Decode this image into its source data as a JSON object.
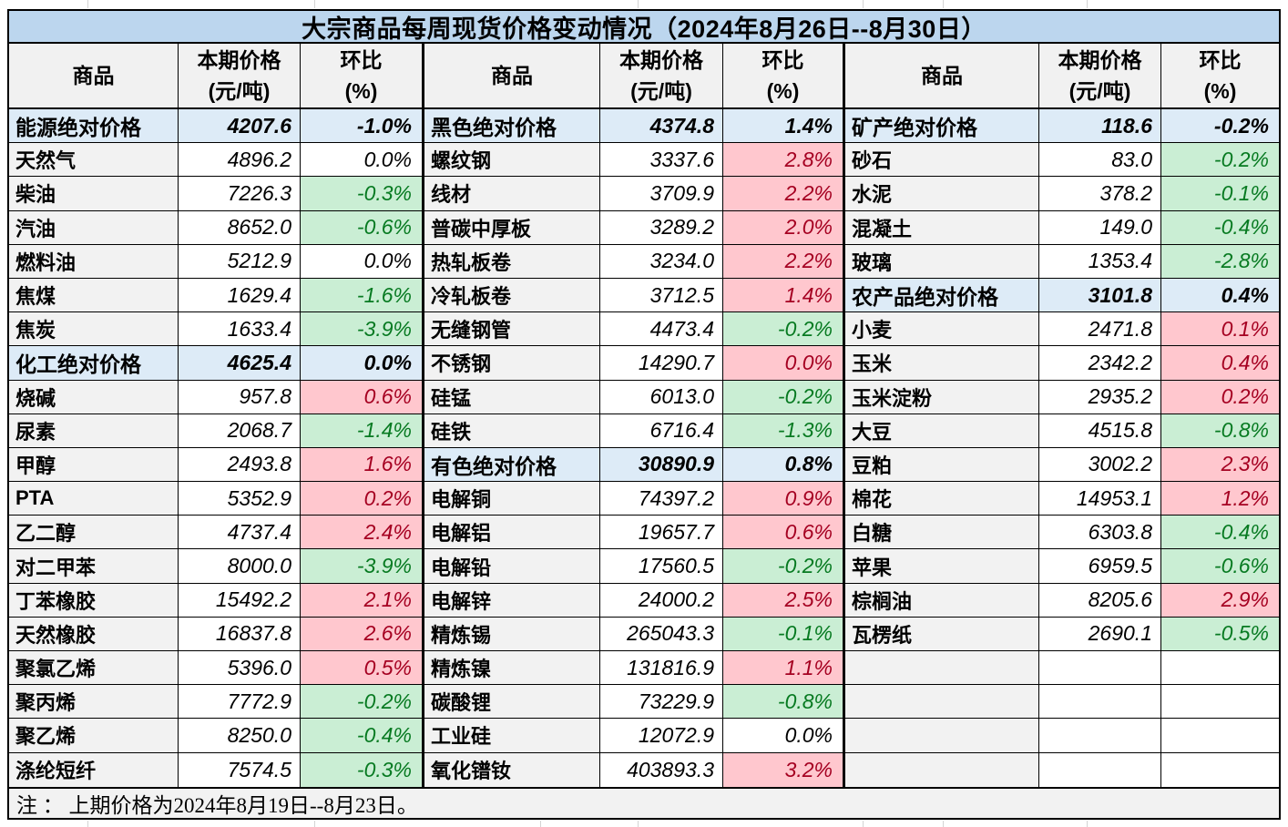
{
  "title": "大宗商品每周现货价格变动情况（2024年8月26日--8月30日）",
  "note": "注 ： 上期价格为2024年8月19日--8月23日。",
  "column_headers": {
    "commodity": "商品",
    "price": "本期价格\n(元/吨)",
    "change": "环比\n(%)"
  },
  "colors": {
    "title_bg": "#BCD6EE",
    "category_row_bg": "#DDEBF7",
    "commodity_col_bg": "#F2F2F2",
    "header_bg": "#F1F1F1",
    "increase_bg": "#FFC7CE",
    "increase_text": "#A50021",
    "decrease_bg": "#CAEED4",
    "decrease_text": "#077A21",
    "border": "#000000"
  },
  "groups": [
    {
      "rows": [
        {
          "type": "category",
          "name": "能源绝对价格",
          "price": "4207.6",
          "change": "-1.0%",
          "change_style": "flat"
        },
        {
          "type": "item",
          "name": "天然气",
          "price": "4896.2",
          "change": "0.0%",
          "change_style": "flat"
        },
        {
          "type": "item",
          "name": "柴油",
          "price": "7226.3",
          "change": "-0.3%",
          "change_style": "down"
        },
        {
          "type": "item",
          "name": "汽油",
          "price": "8652.0",
          "change": "-0.6%",
          "change_style": "down"
        },
        {
          "type": "item",
          "name": "燃料油",
          "price": "5212.9",
          "change": "0.0%",
          "change_style": "flat"
        },
        {
          "type": "item",
          "name": "焦煤",
          "price": "1629.4",
          "change": "-1.6%",
          "change_style": "down"
        },
        {
          "type": "item",
          "name": "焦炭",
          "price": "1633.4",
          "change": "-3.9%",
          "change_style": "down"
        },
        {
          "type": "category",
          "name": "化工绝对价格",
          "price": "4625.4",
          "change": "0.0%",
          "change_style": "flat"
        },
        {
          "type": "item",
          "name": "烧碱",
          "price": "957.8",
          "change": "0.6%",
          "change_style": "up"
        },
        {
          "type": "item",
          "name": "尿素",
          "price": "2068.7",
          "change": "-1.4%",
          "change_style": "down"
        },
        {
          "type": "item",
          "name": "甲醇",
          "price": "2493.8",
          "change": "1.6%",
          "change_style": "up"
        },
        {
          "type": "item",
          "name": "PTA",
          "price": "5352.9",
          "change": "0.2%",
          "change_style": "up"
        },
        {
          "type": "item",
          "name": "乙二醇",
          "price": "4737.4",
          "change": "2.4%",
          "change_style": "up"
        },
        {
          "type": "item",
          "name": "对二甲苯",
          "price": "8000.0",
          "change": "-3.9%",
          "change_style": "down"
        },
        {
          "type": "item",
          "name": "丁苯橡胶",
          "price": "15492.2",
          "change": "2.1%",
          "change_style": "up"
        },
        {
          "type": "item",
          "name": "天然橡胶",
          "price": "16837.8",
          "change": "2.6%",
          "change_style": "up"
        },
        {
          "type": "item",
          "name": "聚氯乙烯",
          "price": "5396.0",
          "change": "0.5%",
          "change_style": "up"
        },
        {
          "type": "item",
          "name": "聚丙烯",
          "price": "7772.9",
          "change": "-0.2%",
          "change_style": "down"
        },
        {
          "type": "item",
          "name": "聚乙烯",
          "price": "8250.0",
          "change": "-0.4%",
          "change_style": "down"
        },
        {
          "type": "item",
          "name": "涤纶短纤",
          "price": "7574.5",
          "change": "-0.3%",
          "change_style": "down"
        }
      ]
    },
    {
      "rows": [
        {
          "type": "category",
          "name": "黑色绝对价格",
          "price": "4374.8",
          "change": "1.4%",
          "change_style": "flat"
        },
        {
          "type": "item",
          "name": "螺纹钢",
          "price": "3337.6",
          "change": "2.8%",
          "change_style": "up"
        },
        {
          "type": "item",
          "name": "线材",
          "price": "3709.9",
          "change": "2.2%",
          "change_style": "up"
        },
        {
          "type": "item",
          "name": "普碳中厚板",
          "price": "3289.2",
          "change": "2.0%",
          "change_style": "up"
        },
        {
          "type": "item",
          "name": "热轧板卷",
          "price": "3234.0",
          "change": "2.2%",
          "change_style": "up"
        },
        {
          "type": "item",
          "name": "冷轧板卷",
          "price": "3712.5",
          "change": "1.4%",
          "change_style": "up"
        },
        {
          "type": "item",
          "name": "无缝钢管",
          "price": "4473.4",
          "change": "-0.2%",
          "change_style": "down"
        },
        {
          "type": "item",
          "name": "不锈钢",
          "price": "14290.7",
          "change": "0.0%",
          "change_style": "up"
        },
        {
          "type": "item",
          "name": "硅锰",
          "price": "6013.0",
          "change": "-0.2%",
          "change_style": "down"
        },
        {
          "type": "item",
          "name": "硅铁",
          "price": "6716.4",
          "change": "-1.3%",
          "change_style": "down"
        },
        {
          "type": "category",
          "name": "有色绝对价格",
          "price": "30890.9",
          "change": "0.8%",
          "change_style": "flat"
        },
        {
          "type": "item",
          "name": "电解铜",
          "price": "74397.2",
          "change": "0.9%",
          "change_style": "up"
        },
        {
          "type": "item",
          "name": "电解铝",
          "price": "19657.7",
          "change": "0.6%",
          "change_style": "up"
        },
        {
          "type": "item",
          "name": "电解铅",
          "price": "17560.5",
          "change": "-0.2%",
          "change_style": "down"
        },
        {
          "type": "item",
          "name": "电解锌",
          "price": "24000.2",
          "change": "2.5%",
          "change_style": "up"
        },
        {
          "type": "item",
          "name": "精炼锡",
          "price": "265043.3",
          "change": "-0.1%",
          "change_style": "down"
        },
        {
          "type": "item",
          "name": "精炼镍",
          "price": "131816.9",
          "change": "1.1%",
          "change_style": "up"
        },
        {
          "type": "item",
          "name": "碳酸锂",
          "price": "73229.9",
          "change": "-0.8%",
          "change_style": "down"
        },
        {
          "type": "item",
          "name": "工业硅",
          "price": "12072.9",
          "change": "0.0%",
          "change_style": "flat"
        },
        {
          "type": "item",
          "name": "氧化镨钕",
          "price": "403893.3",
          "change": "3.2%",
          "change_style": "up"
        }
      ]
    },
    {
      "rows": [
        {
          "type": "category",
          "name": "矿产绝对价格",
          "price": "118.6",
          "change": "-0.2%",
          "change_style": "flat"
        },
        {
          "type": "item",
          "name": "砂石",
          "price": "83.0",
          "change": "-0.2%",
          "change_style": "down"
        },
        {
          "type": "item",
          "name": "水泥",
          "price": "378.2",
          "change": "-0.1%",
          "change_style": "down"
        },
        {
          "type": "item",
          "name": "混凝土",
          "price": "149.0",
          "change": "-0.4%",
          "change_style": "down"
        },
        {
          "type": "item",
          "name": "玻璃",
          "price": "1353.4",
          "change": "-2.8%",
          "change_style": "down"
        },
        {
          "type": "category",
          "name": "农产品绝对价格",
          "price": "3101.8",
          "change": "0.4%",
          "change_style": "flat"
        },
        {
          "type": "item",
          "name": "小麦",
          "price": "2471.8",
          "change": "0.1%",
          "change_style": "up"
        },
        {
          "type": "item",
          "name": "玉米",
          "price": "2342.2",
          "change": "0.4%",
          "change_style": "up"
        },
        {
          "type": "item",
          "name": "玉米淀粉",
          "price": "2935.2",
          "change": "0.2%",
          "change_style": "up"
        },
        {
          "type": "item",
          "name": "大豆",
          "price": "4515.8",
          "change": "-0.8%",
          "change_style": "down"
        },
        {
          "type": "item",
          "name": "豆粕",
          "price": "3002.2",
          "change": "2.3%",
          "change_style": "up"
        },
        {
          "type": "item",
          "name": "棉花",
          "price": "14953.1",
          "change": "1.2%",
          "change_style": "up"
        },
        {
          "type": "item",
          "name": "白糖",
          "price": "6303.8",
          "change": "-0.4%",
          "change_style": "down"
        },
        {
          "type": "item",
          "name": "苹果",
          "price": "6959.5",
          "change": "-0.6%",
          "change_style": "down"
        },
        {
          "type": "item",
          "name": "棕榈油",
          "price": "8205.6",
          "change": "2.9%",
          "change_style": "up"
        },
        {
          "type": "item",
          "name": "瓦楞纸",
          "price": "2690.1",
          "change": "-0.5%",
          "change_style": "down"
        },
        {
          "type": "empty",
          "name": "",
          "price": "",
          "change": "",
          "change_style": "flat"
        },
        {
          "type": "empty",
          "name": "",
          "price": "",
          "change": "",
          "change_style": "flat"
        },
        {
          "type": "empty",
          "name": "",
          "price": "",
          "change": "",
          "change_style": "flat"
        },
        {
          "type": "empty",
          "name": "",
          "price": "",
          "change": "",
          "change_style": "flat"
        }
      ]
    }
  ]
}
